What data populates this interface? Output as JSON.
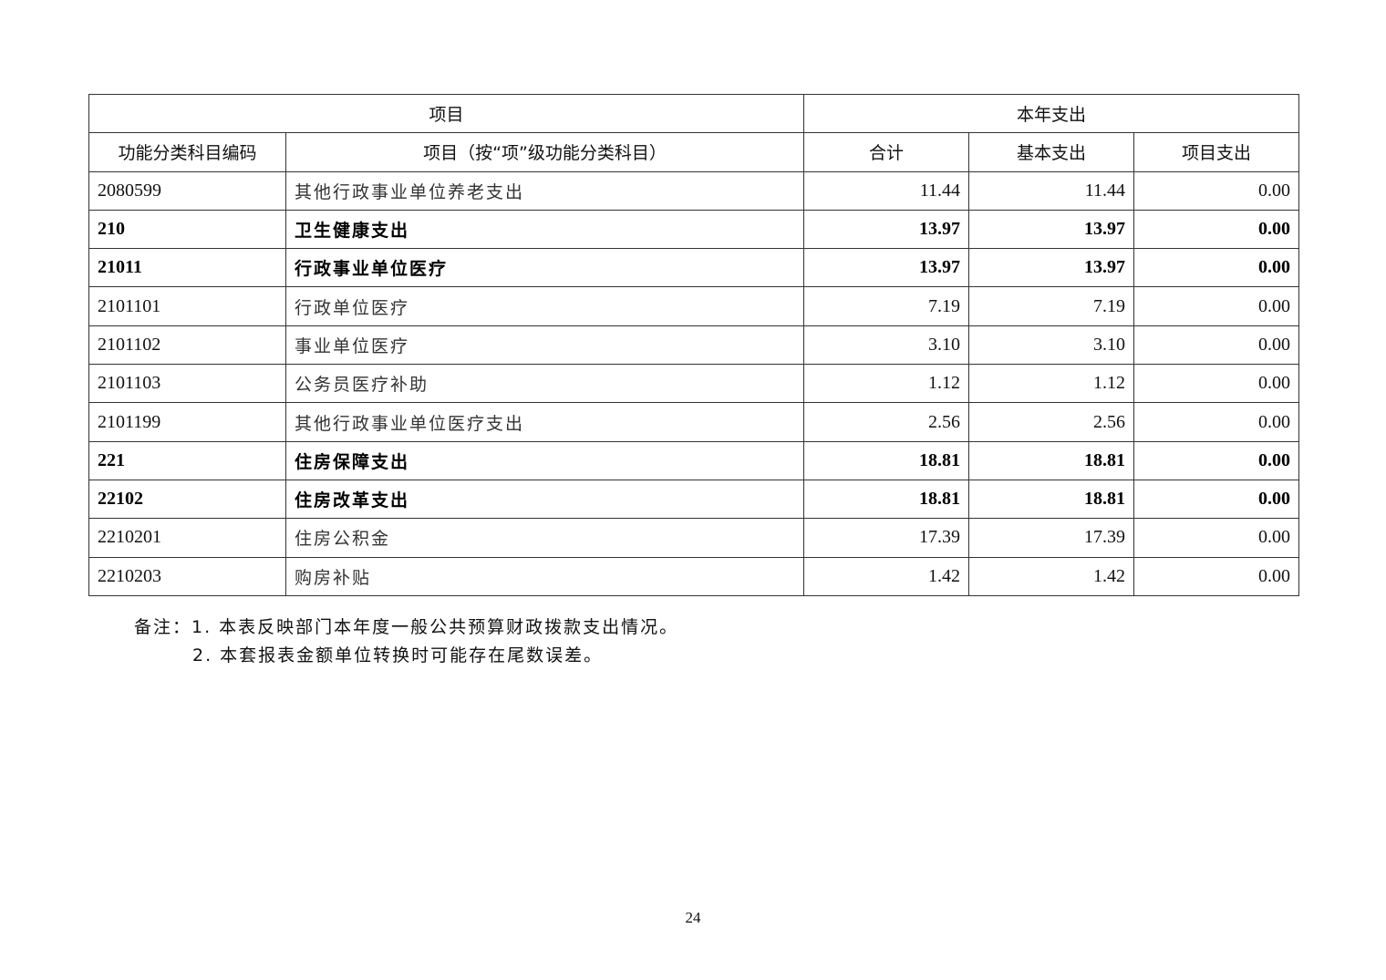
{
  "table": {
    "header_group_left": "项目",
    "header_group_right": "本年支出",
    "columns": [
      "功能分类科目编码",
      "项目（按“项”级功能分类科目）",
      "合计",
      "基本支出",
      "项目支出"
    ],
    "rows": [
      {
        "code": "2080599",
        "name": "其他行政事业单位养老支出",
        "total": "11.44",
        "basic": "11.44",
        "project": "0.00",
        "bold": false
      },
      {
        "code": "210",
        "name": "卫生健康支出",
        "total": "13.97",
        "basic": "13.97",
        "project": "0.00",
        "bold": true
      },
      {
        "code": "21011",
        "name": "行政事业单位医疗",
        "total": "13.97",
        "basic": "13.97",
        "project": "0.00",
        "bold": true
      },
      {
        "code": "2101101",
        "name": "行政单位医疗",
        "total": "7.19",
        "basic": "7.19",
        "project": "0.00",
        "bold": false
      },
      {
        "code": "2101102",
        "name": "事业单位医疗",
        "total": "3.10",
        "basic": "3.10",
        "project": "0.00",
        "bold": false
      },
      {
        "code": "2101103",
        "name": "公务员医疗补助",
        "total": "1.12",
        "basic": "1.12",
        "project": "0.00",
        "bold": false
      },
      {
        "code": "2101199",
        "name": "其他行政事业单位医疗支出",
        "total": "2.56",
        "basic": "2.56",
        "project": "0.00",
        "bold": false
      },
      {
        "code": "221",
        "name": "住房保障支出",
        "total": "18.81",
        "basic": "18.81",
        "project": "0.00",
        "bold": true
      },
      {
        "code": "22102",
        "name": "住房改革支出",
        "total": "18.81",
        "basic": "18.81",
        "project": "0.00",
        "bold": true
      },
      {
        "code": "2210201",
        "name": "住房公积金",
        "total": "17.39",
        "basic": "17.39",
        "project": "0.00",
        "bold": false
      },
      {
        "code": "2210203",
        "name": "购房补贴",
        "total": "1.42",
        "basic": "1.42",
        "project": "0.00",
        "bold": false
      }
    ]
  },
  "notes": {
    "line1": "备注：1. 本表反映部门本年度一般公共预算财政拨款支出情况。",
    "line2": "2. 本套报表金额单位转换时可能存在尾数误差。"
  },
  "page_number": "24"
}
